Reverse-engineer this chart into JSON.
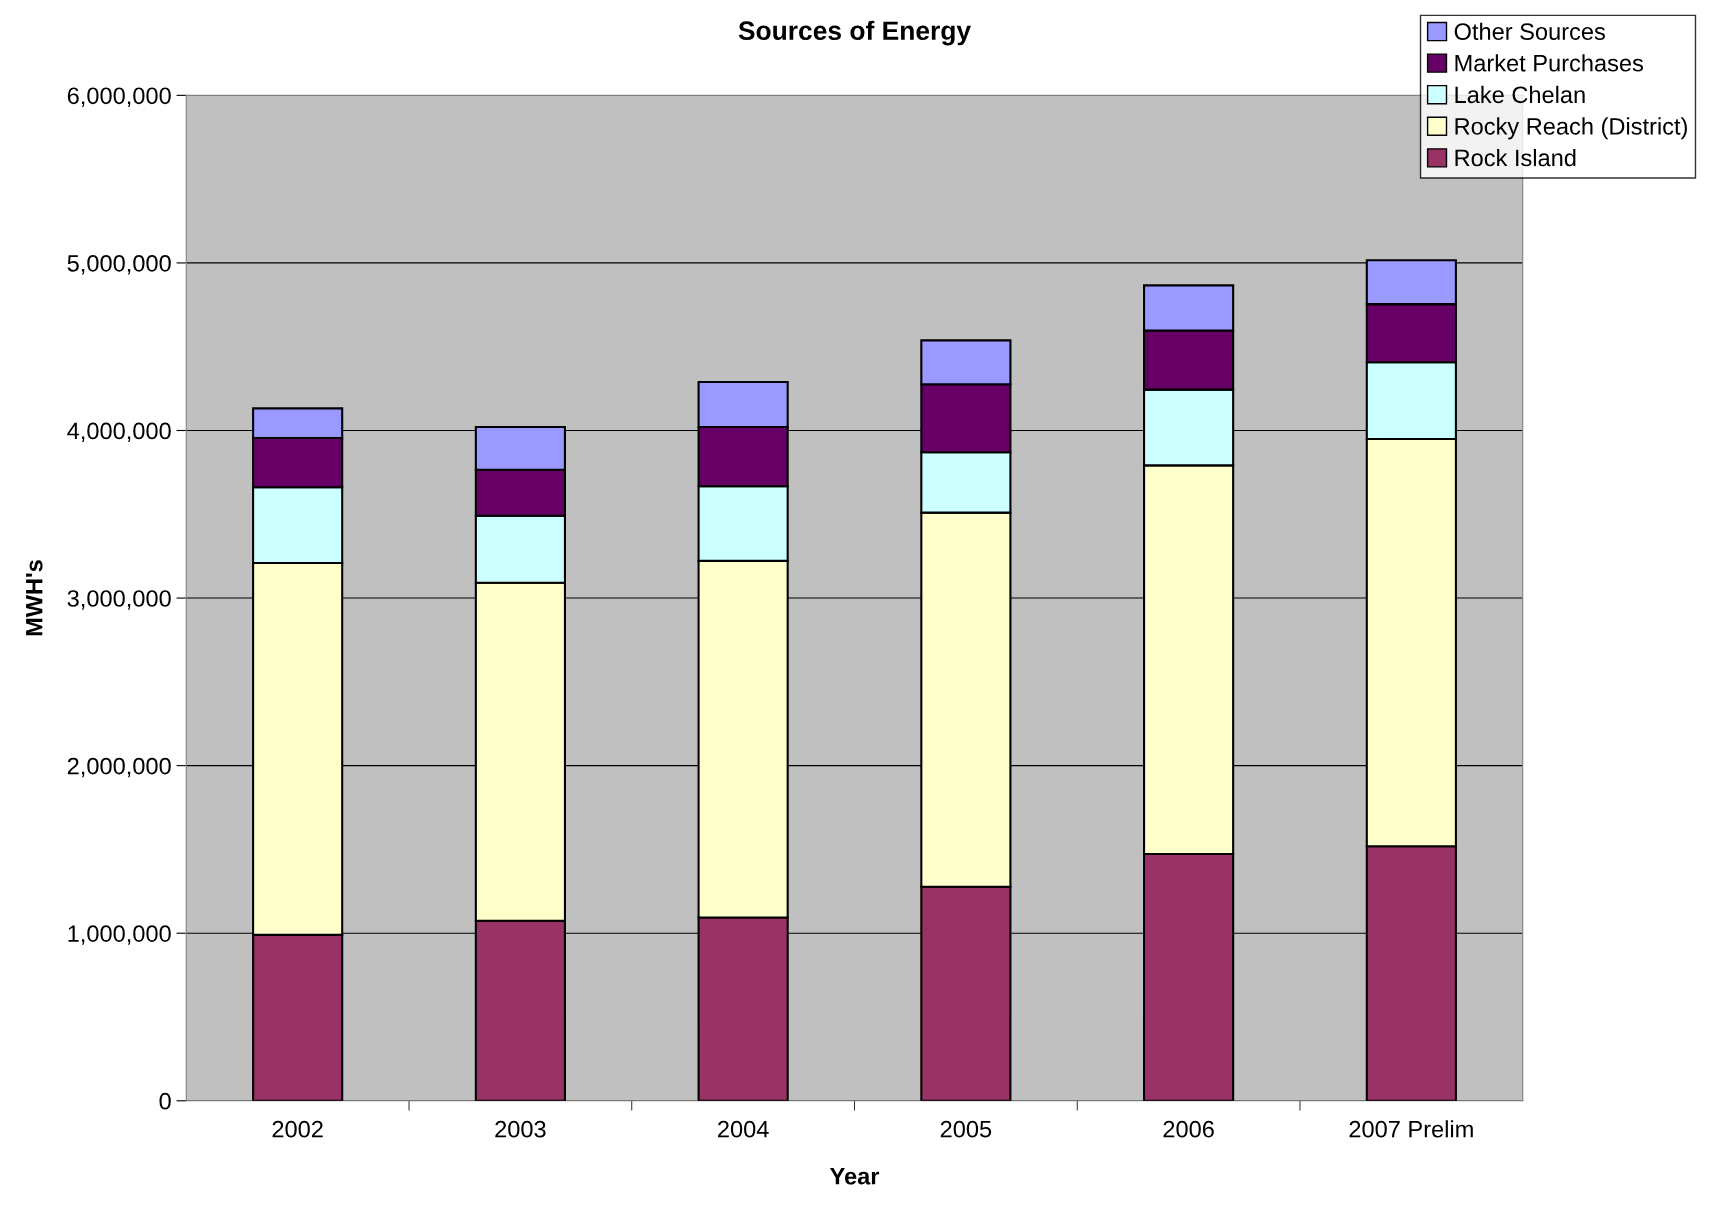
{
  "chart_data": {
    "type": "bar",
    "title": "Sources of Energy",
    "xlabel": "Year",
    "ylabel": "MWH's",
    "stacked": true,
    "grid": "y",
    "legend": "top right",
    "categories": [
      "2002",
      "2003",
      "2004",
      "2005",
      "2006",
      "2007 Prelim"
    ],
    "series": [
      {
        "name": "Rock Island",
        "color": "#993366",
        "values": [
          990000,
          1074000,
          1094000,
          1277000,
          1473000,
          1519000
        ]
      },
      {
        "name": "Rocky Reach (District)",
        "color": "#ffffcc",
        "values": [
          2219000,
          2017000,
          2128000,
          2233000,
          2319000,
          2430000
        ]
      },
      {
        "name": "Lake Chelan",
        "color": "#ccffff",
        "values": [
          452000,
          400000,
          445000,
          360000,
          452000,
          458000
        ]
      },
      {
        "name": "Market Purchases",
        "color": "#660066",
        "values": [
          294000,
          275000,
          354000,
          406000,
          353000,
          347000
        ]
      },
      {
        "name": "Other Sources",
        "color": "#9999ff",
        "values": [
          177000,
          255000,
          268000,
          262000,
          269000,
          262000
        ]
      }
    ],
    "ylim": [
      0,
      6000000
    ],
    "yticks": [
      0,
      {
        "value": 1000000,
        "label": "1,000,000"
      },
      {
        "value": 2000000,
        "label": "2,000,000"
      },
      {
        "value": 3000000,
        "label": "3,000,000"
      },
      {
        "value": 4000000,
        "label": "4,000,000"
      },
      {
        "value": 5000000,
        "label": "5,000,000"
      },
      {
        "value": 6000000,
        "label": "6,000,000"
      }
    ]
  }
}
